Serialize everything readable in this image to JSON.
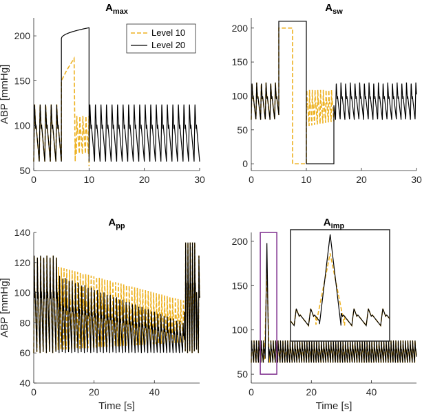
{
  "colors": {
    "level10": "#EDB120",
    "level20": "#000000",
    "zoom_box": "#7E2F8E",
    "axis": "#262626"
  },
  "chart_data": [
    {
      "id": "amax",
      "type": "line",
      "title_main": "A",
      "title_sub": "max",
      "xlabel": "",
      "ylabel": "ABP [mmHg]",
      "xlim": [
        0,
        30
      ],
      "ylim": [
        50,
        220
      ],
      "xticks": [
        0,
        10,
        20,
        30
      ],
      "yticks": [
        50,
        100,
        150,
        200
      ],
      "legend": {
        "location": "top-right",
        "entries": [
          "Level 10",
          "Level 20"
        ]
      },
      "baseline": {
        "dia": 60,
        "sys": 125,
        "period": 1.0,
        "t0": 0,
        "t1": 30
      },
      "level20": {
        "attack_start": 5,
        "attack_end": 10,
        "start_value": 197,
        "end_value": 209
      },
      "level10": {
        "attack_start": 5,
        "attack_end": 7.5,
        "start_value": 150,
        "end_value": 175,
        "drop_to": 60,
        "recover_end": 10
      }
    },
    {
      "id": "asw",
      "type": "line",
      "title_main": "A",
      "title_sub": "sw",
      "xlabel": "",
      "ylabel": "",
      "xlim": [
        0,
        30
      ],
      "ylim": [
        -10,
        215
      ],
      "xticks": [
        0,
        10,
        20,
        30
      ],
      "yticks": [
        0,
        50,
        100,
        150,
        200
      ],
      "baseline": {
        "dia": 65,
        "sys": 120,
        "period": 0.85,
        "t0": 0,
        "t1": 30
      },
      "level20": {
        "high_start": 5,
        "high_end": 10,
        "high_value": 210,
        "low_end": 15,
        "low_value": 0
      },
      "level10": {
        "high_start": 5,
        "high_end": 7.5,
        "high_value": 200,
        "low_end": 10,
        "low_value": 0,
        "oscillation_end": 15
      }
    },
    {
      "id": "app",
      "type": "line",
      "title_main": "A",
      "title_sub": "pp",
      "xlabel": "Time [s]",
      "ylabel": "ABP [mmHg]",
      "xlim": [
        0,
        55
      ],
      "ylim": [
        40,
        140
      ],
      "xticks": [
        0,
        20,
        40
      ],
      "yticks": [
        40,
        60,
        80,
        100,
        120,
        140
      ],
      "baseline": {
        "dia": 60,
        "sys": 125,
        "period": 1.05,
        "t0": 0,
        "t1": 55
      },
      "attack": {
        "start": 8,
        "end": 50,
        "level20_sys_end": 80,
        "level10_sys_start": 118,
        "level10_sys_end": 95
      },
      "recovery": {
        "start": 50,
        "end": 54,
        "sys": 135
      }
    },
    {
      "id": "aimp",
      "type": "line",
      "title_main": "A",
      "title_sub": "imp",
      "xlabel": "Time [s]",
      "ylabel": "",
      "xlim": [
        0,
        55
      ],
      "ylim": [
        40,
        210
      ],
      "xticks": [
        0,
        20,
        40
      ],
      "yticks": [
        50,
        100,
        150,
        200
      ],
      "baseline": {
        "dia": 63,
        "sys": 88,
        "period": 0.8,
        "t0": 0,
        "t1": 55
      },
      "impulse": {
        "time": 5.2,
        "peak": 198,
        "level10_peak": 170
      },
      "zoom_window": {
        "x0": 3,
        "x1": 8.5,
        "y0": 50,
        "y1": 210
      }
    }
  ]
}
